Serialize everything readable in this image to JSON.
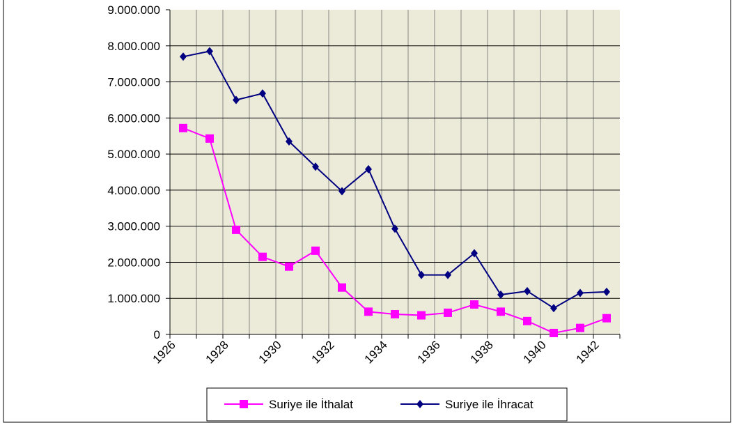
{
  "chart_data": {
    "type": "line",
    "categories": [
      "1926",
      null,
      "1928",
      null,
      "1930",
      null,
      "1932",
      null,
      "1934",
      null,
      "1936",
      null,
      "1938",
      null,
      "1940",
      null,
      "1942"
    ],
    "series": [
      {
        "name": "Suriye ile İthalat",
        "color": "#ff00ff",
        "marker": "square",
        "values": [
          5720000,
          5430000,
          2900000,
          2150000,
          1880000,
          2320000,
          1300000,
          630000,
          560000,
          530000,
          600000,
          830000,
          630000,
          370000,
          40000,
          180000,
          450000
        ]
      },
      {
        "name": "Suriye ile İhracat",
        "color": "#000080",
        "marker": "diamond",
        "values": [
          7700000,
          7850000,
          6500000,
          6680000,
          5350000,
          4650000,
          3970000,
          4580000,
          2930000,
          1650000,
          1650000,
          2250000,
          1100000,
          1200000,
          730000,
          1150000,
          1180000
        ]
      }
    ],
    "ylim": [
      0,
      9000000
    ],
    "yticks": [
      0,
      {
        "value": 1000000,
        "label": "1.000.000"
      },
      {
        "value": 2000000,
        "label": "2.000.000"
      },
      {
        "value": 3000000,
        "label": "3.000.000"
      },
      {
        "value": 4000000,
        "label": "4.000.000"
      },
      {
        "value": 5000000,
        "label": "5.000.000"
      },
      {
        "value": 6000000,
        "label": "6.000.000"
      },
      {
        "value": 7000000,
        "label": "7.000.000"
      },
      {
        "value": 8000000,
        "label": "8.000.000"
      },
      {
        "value": 9000000,
        "label": "9.000.000"
      }
    ],
    "grid": true,
    "legend": "bottom"
  }
}
